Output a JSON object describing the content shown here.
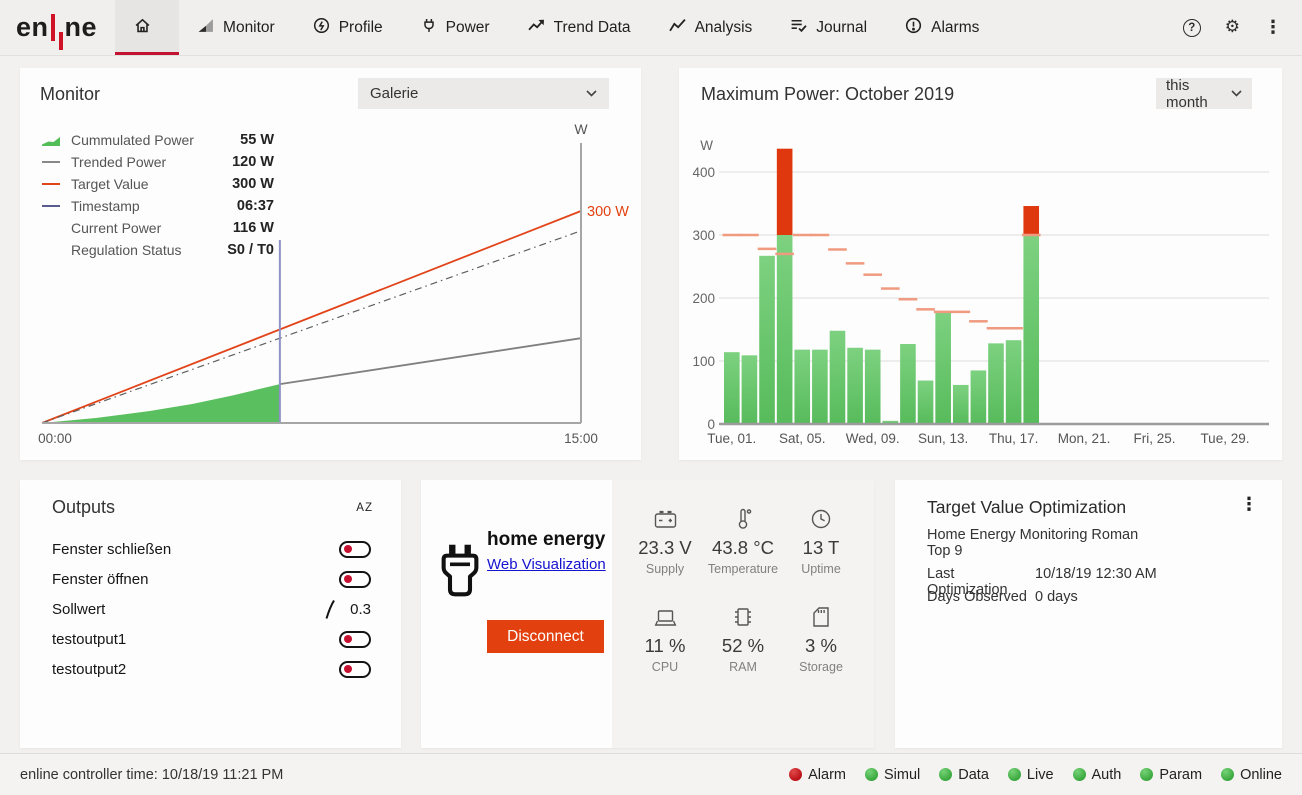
{
  "colors": {
    "accent_red": "#c21330",
    "orange": "#e2410f",
    "bar_green": "#69c56d",
    "bar_red": "#e0380e",
    "target_tick_salmon": "#f09a80",
    "led_green": "#43b549",
    "led_red": "#c9151d",
    "link_blue": "#1512d0",
    "timestamp_purple": "#8e92c4"
  },
  "header": {
    "brand_prefix": "en",
    "brand_suffix": "ne",
    "tabs": [
      {
        "label": "",
        "icon": "home-icon",
        "active": true
      },
      {
        "label": "Monitor",
        "icon": "monitor-icon"
      },
      {
        "label": "Profile",
        "icon": "profile-icon"
      },
      {
        "label": "Power",
        "icon": "power-plug-icon"
      },
      {
        "label": "Trend Data",
        "icon": "trend-data-icon"
      },
      {
        "label": "Analysis",
        "icon": "analysis-icon"
      },
      {
        "label": "Journal",
        "icon": "journal-icon"
      },
      {
        "label": "Alarms",
        "icon": "alarms-icon"
      }
    ],
    "help_glyph": "?",
    "settings_glyph": "⚙",
    "more_glyph": "⋮"
  },
  "monitor": {
    "title": "Monitor",
    "gallery_select_value": "Galerie",
    "legend": [
      {
        "label": "Cummulated Power",
        "value": "55 W"
      },
      {
        "label": "Trended Power",
        "value": "120 W"
      },
      {
        "label": "Target Value",
        "value": "300 W"
      },
      {
        "label": "Timestamp",
        "value": "06:37"
      },
      {
        "label": "Current Power",
        "value": "116 W"
      },
      {
        "label": "Regulation Status",
        "value": "S0 / T0"
      }
    ]
  },
  "max_power": {
    "title": "Maximum Power: October 2019",
    "range_select_value": "this month"
  },
  "outputs": {
    "title": "Outputs",
    "sort_icon_text": "AZ",
    "items": [
      {
        "label": "Fenster schließen",
        "control": "toggle"
      },
      {
        "label": "Fenster öffnen",
        "control": "toggle"
      },
      {
        "label": "Sollwert",
        "control": "setpoint",
        "value": "0.3"
      },
      {
        "label": "testoutput1",
        "control": "toggle"
      },
      {
        "label": "testoutput2",
        "control": "toggle"
      }
    ]
  },
  "device": {
    "name": "home energy",
    "link_label": "Web Visualization",
    "disconnect_label": "Disconnect",
    "stats": [
      {
        "icon": "battery-icon",
        "value": "23.3 V",
        "label": "Supply"
      },
      {
        "icon": "thermometer-icon",
        "value": "43.8 °C",
        "label": "Temperature"
      },
      {
        "icon": "clock-icon",
        "value": "13 T",
        "label": "Uptime"
      },
      {
        "icon": "laptop-icon",
        "value": "11 %",
        "label": "CPU"
      },
      {
        "icon": "ram-chip-icon",
        "value": "52 %",
        "label": "RAM"
      },
      {
        "icon": "sd-card-icon",
        "value": "3 %",
        "label": "Storage"
      }
    ]
  },
  "optimization": {
    "title": "Target Value Optimization",
    "profile_name_line1": "Home Energy Monitoring Roman",
    "profile_name_line2": "Top 9",
    "rows": [
      {
        "label": "Last Optimization",
        "value": "10/18/19 12:30 AM"
      },
      {
        "label": "Days Observed",
        "value": "0 days"
      }
    ]
  },
  "footer": {
    "controller_time": "enline controller time: 10/18/19 11:21 PM",
    "status": [
      {
        "label": "Alarm",
        "state": "red"
      },
      {
        "label": "Simul",
        "state": "green"
      },
      {
        "label": "Data",
        "state": "green"
      },
      {
        "label": "Live",
        "state": "green"
      },
      {
        "label": "Auth",
        "state": "green"
      },
      {
        "label": "Param",
        "state": "green"
      },
      {
        "label": "Online",
        "state": "green"
      }
    ]
  },
  "chart_data": [
    {
      "id": "monitor-intraday",
      "type": "line",
      "title": "Monitor",
      "y_unit": "W",
      "x_domain_hours": [
        0,
        15
      ],
      "xlabel_ticks": [
        "00:00",
        "15:00"
      ],
      "timestamp_hours": 6.62,
      "annotation": {
        "text": "300 W",
        "y": 300
      },
      "series": [
        {
          "name": "Target Value",
          "style": "solid",
          "color": "#e2441a",
          "points": [
            [
              0,
              0
            ],
            [
              15,
              300
            ]
          ]
        },
        {
          "name": "Optimized Target",
          "style": "dashdot",
          "color": "#5f5f5f",
          "points": [
            [
              0,
              0
            ],
            [
              15,
              272
            ]
          ]
        },
        {
          "name": "Cummulated Power",
          "style": "area",
          "color": "#5abf5e",
          "points": [
            [
              0,
              0
            ],
            [
              1.5,
              7
            ],
            [
              3,
              17
            ],
            [
              4.2,
              27
            ],
            [
              5.3,
              39
            ],
            [
              6.62,
              55
            ]
          ]
        },
        {
          "name": "Trended Power",
          "style": "solid",
          "color": "#808080",
          "points": [
            [
              6.62,
              55
            ],
            [
              15,
              120
            ]
          ]
        }
      ]
    },
    {
      "id": "max-power-october",
      "type": "bar",
      "title": "Maximum Power: October 2019",
      "y_unit": "W",
      "ylim": [
        0,
        450
      ],
      "yticks": [
        0,
        100,
        200,
        300,
        400
      ],
      "days_in_month": 31,
      "threshold": 300,
      "bar_color_below": "#69c56d",
      "bar_color_above": "#e0380e",
      "target_tick_color": "#f09a80",
      "values_by_day": [
        114,
        109,
        267,
        437,
        118,
        118,
        148,
        121,
        118,
        5,
        127,
        69,
        178,
        62,
        85,
        128,
        133,
        346
      ],
      "target_by_day": [
        300,
        300,
        278,
        270,
        300,
        300,
        277,
        255,
        237,
        215,
        198,
        182,
        178,
        178,
        163,
        152,
        152,
        300
      ],
      "x_tick_labels": [
        {
          "day": 1,
          "label": "Tue, 01."
        },
        {
          "day": 5,
          "label": "Sat, 05."
        },
        {
          "day": 9,
          "label": "Wed, 09."
        },
        {
          "day": 13,
          "label": "Sun, 13."
        },
        {
          "day": 17,
          "label": "Thu, 17."
        },
        {
          "day": 21,
          "label": "Mon, 21."
        },
        {
          "day": 25,
          "label": "Fri, 25."
        },
        {
          "day": 29,
          "label": "Tue, 29."
        }
      ]
    }
  ]
}
